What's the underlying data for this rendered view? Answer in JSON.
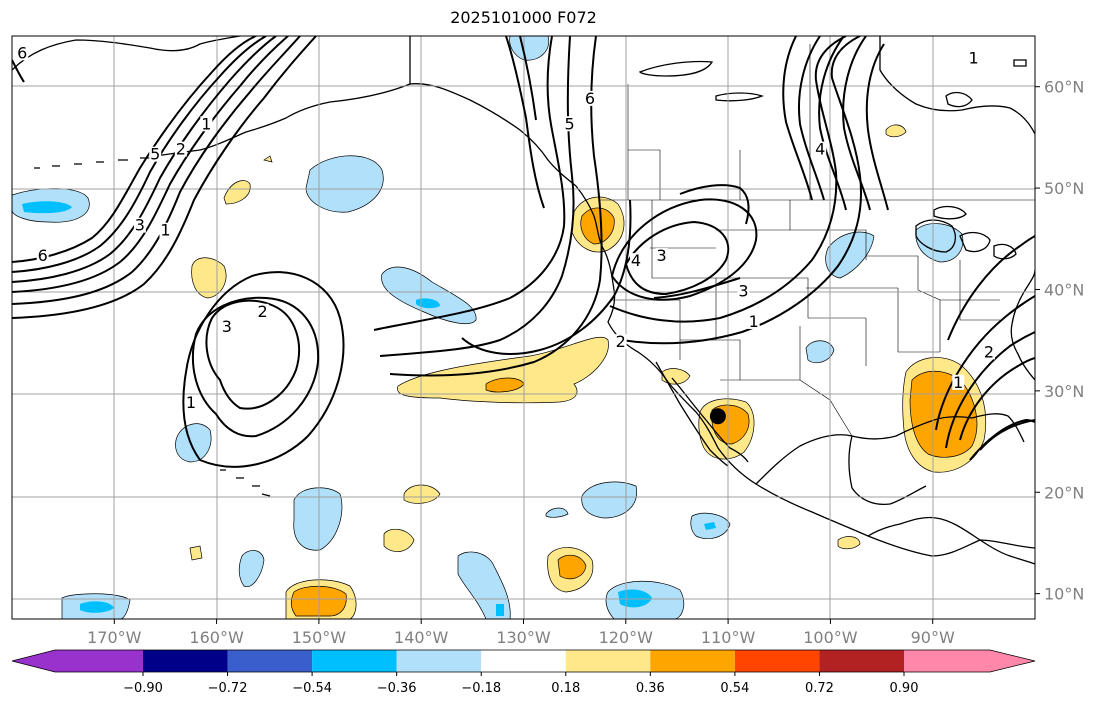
{
  "title": "2025101000 F072",
  "colors": {
    "coast": "#000000",
    "grid": "#a0a0a0",
    "contour": "#000000",
    "axis_label": "#808080"
  },
  "chart_data": {
    "type": "map",
    "projection": "cylindrical",
    "extent": {
      "lon": [
        -180,
        -80
      ],
      "lat": [
        7.5,
        65
      ]
    },
    "lat_ticks": [
      {
        "value": 60,
        "label": "60°N"
      },
      {
        "value": 50,
        "label": "50°N"
      },
      {
        "value": 40,
        "label": "40°N"
      },
      {
        "value": 30,
        "label": "30°N"
      },
      {
        "value": 20,
        "label": "20°N"
      },
      {
        "value": 10,
        "label": "10°N"
      }
    ],
    "lon_ticks": [
      {
        "value": -170,
        "label": "170°W"
      },
      {
        "value": -160,
        "label": "160°W"
      },
      {
        "value": -150,
        "label": "150°W"
      },
      {
        "value": -140,
        "label": "140°W"
      },
      {
        "value": -130,
        "label": "130°W"
      },
      {
        "value": -120,
        "label": "120°W"
      },
      {
        "value": -110,
        "label": "110°W"
      },
      {
        "value": -100,
        "label": "100°W"
      },
      {
        "value": -90,
        "label": "90°W"
      }
    ],
    "grid": true,
    "marker": {
      "lon": -111,
      "lat": 27.5
    },
    "colorbar": {
      "extend": "both",
      "under_color": "#9932cc",
      "over_color": "#ff88aa",
      "levels": [
        -0.9,
        -0.72,
        -0.54,
        -0.36,
        -0.18,
        0.18,
        0.36,
        0.54,
        0.72,
        0.9
      ],
      "colors": [
        "#000088",
        "#3a5fcd",
        "#00bfff",
        "#b0e0fa",
        "#ffffff",
        "#ffe88a",
        "#ffa500",
        "#ff4500",
        "#b22222"
      ],
      "labels": [
        "−0.90",
        "−0.72",
        "−0.54",
        "−0.36",
        "−0.18",
        "0.18",
        "0.36",
        "0.54",
        "0.72",
        "0.90"
      ]
    },
    "contour_labels": [
      {
        "text": "6",
        "lon": -179,
        "lat": 63
      },
      {
        "text": "1",
        "lon": -161,
        "lat": 56
      },
      {
        "text": "2",
        "lon": -163.5,
        "lat": 53.5
      },
      {
        "text": "5",
        "lon": -166,
        "lat": 53
      },
      {
        "text": "3",
        "lon": -167.5,
        "lat": 46
      },
      {
        "text": "1",
        "lon": -165,
        "lat": 45.5
      },
      {
        "text": "6",
        "lon": -177,
        "lat": 43
      },
      {
        "text": "3",
        "lon": -159,
        "lat": 36
      },
      {
        "text": "2",
        "lon": -155.5,
        "lat": 37.5
      },
      {
        "text": "1",
        "lon": -162.5,
        "lat": 28.5
      },
      {
        "text": "5",
        "lon": -125.5,
        "lat": 56
      },
      {
        "text": "6",
        "lon": -123.5,
        "lat": 58.5
      },
      {
        "text": "4",
        "lon": -119,
        "lat": 42.5
      },
      {
        "text": "3",
        "lon": -116.5,
        "lat": 43
      },
      {
        "text": "3",
        "lon": -108.5,
        "lat": 39.5
      },
      {
        "text": "1",
        "lon": -107.5,
        "lat": 36.5
      },
      {
        "text": "2",
        "lon": -120.5,
        "lat": 34.5
      },
      {
        "text": "4",
        "lon": -101,
        "lat": 53.5
      },
      {
        "text": "1",
        "lon": -86,
        "lat": 62.5
      },
      {
        "text": "2",
        "lon": -84.5,
        "lat": 33.5
      },
      {
        "text": "1",
        "lon": -87.5,
        "lat": 30.5
      }
    ]
  }
}
